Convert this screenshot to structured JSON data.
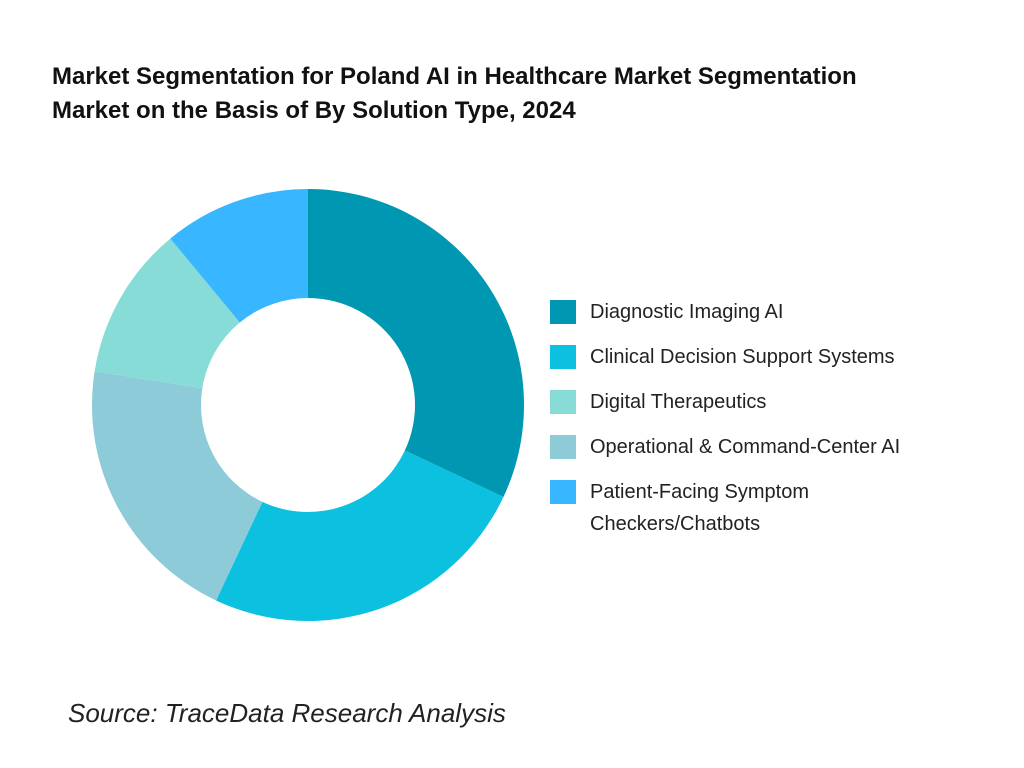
{
  "chart_data": {
    "type": "donut",
    "title": "Market Segmentation for Poland AI in Healthcare Market Segmentation Market on the Basis of By Solution Type, 2024",
    "categories": [
      "Diagnostic Imaging AI",
      "Clinical Decision Support Systems",
      "Digital Therapeutics",
      "Operational & Command-Center AI",
      "Patient-Facing Symptom Checkers/Chatbots"
    ],
    "values": [
      32,
      25,
      11.5,
      20.5,
      11
    ],
    "colors": [
      "#0097b2",
      "#0cc0df",
      "#87dcd8",
      "#8ecbd8",
      "#38b6ff"
    ],
    "source": "Source: TraceData Research Analysis"
  }
}
